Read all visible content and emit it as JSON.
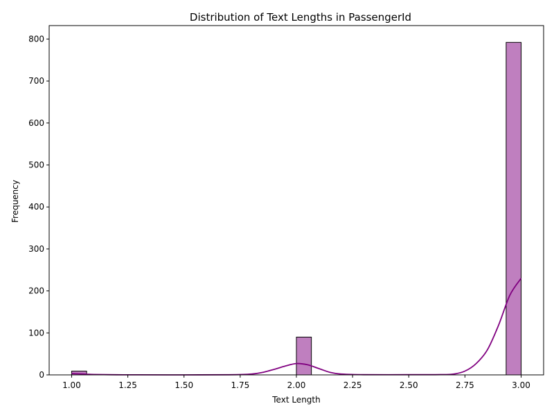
{
  "chart_data": {
    "type": "bar",
    "title": "Distribution of Text Lengths in PassengerId",
    "xlabel": "Text Length",
    "ylabel": "Frequency",
    "xlim": [
      0.9,
      3.1
    ],
    "ylim": [
      0,
      832
    ],
    "xticks": [
      "1.00",
      "1.25",
      "1.50",
      "1.75",
      "2.00",
      "2.25",
      "2.50",
      "2.75",
      "3.00"
    ],
    "yticks": [
      "0",
      "100",
      "200",
      "300",
      "400",
      "500",
      "600",
      "700",
      "800"
    ],
    "bin_width": 0.0667,
    "bins": [
      {
        "x0": 1.0,
        "x1": 1.0667,
        "count": 9
      },
      {
        "x0": 2.0,
        "x1": 2.0667,
        "count": 90
      },
      {
        "x0": 2.9333,
        "x1": 3.0,
        "count": 792
      }
    ],
    "kde": {
      "x": [
        1.0,
        1.05,
        1.1,
        1.2,
        1.3,
        1.5,
        1.7,
        1.8,
        1.85,
        1.9,
        1.95,
        2.0,
        2.05,
        2.1,
        2.15,
        2.2,
        2.3,
        2.5,
        2.65,
        2.7,
        2.75,
        2.8,
        2.85,
        2.9,
        2.95,
        3.0
      ],
      "y": [
        3,
        2.2,
        1,
        0.3,
        0.1,
        0.05,
        0.3,
        2,
        6,
        13,
        21,
        27,
        24,
        15,
        6,
        2,
        0.5,
        0.5,
        0.8,
        2,
        9,
        27,
        60,
        119,
        190,
        230
      ]
    },
    "colors": {
      "bar_fill": "#bf7fbf",
      "bar_edge": "#000000",
      "kde_line": "#800080"
    },
    "grid": false,
    "legend": "none"
  }
}
